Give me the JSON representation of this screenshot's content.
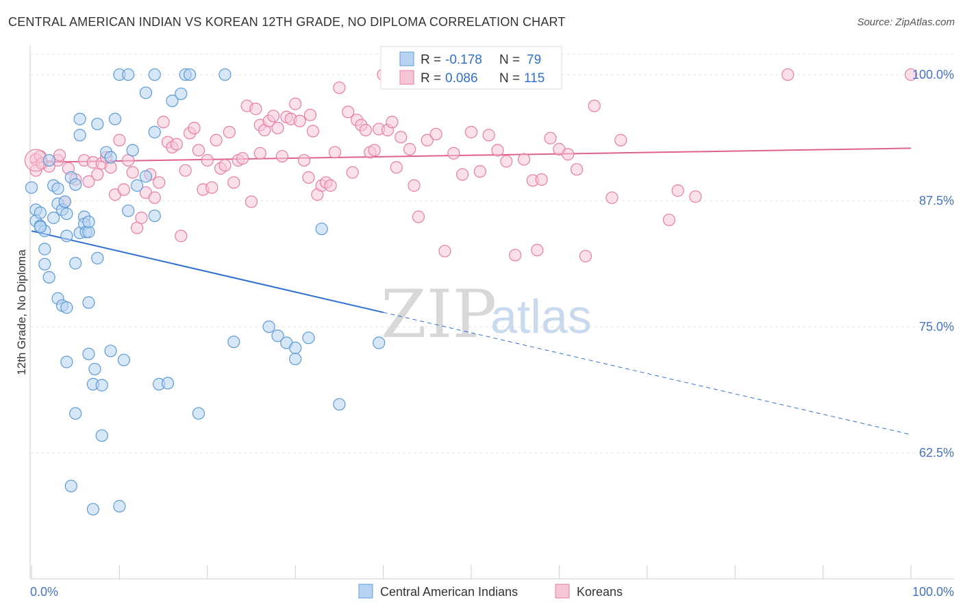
{
  "title": "CENTRAL AMERICAN INDIAN VS KOREAN 12TH GRADE, NO DIPLOMA CORRELATION CHART",
  "source": "Source: ZipAtlas.com",
  "watermark": {
    "zip": "ZIP",
    "atlas": "atlas"
  },
  "colors": {
    "blue": "#5b9bd5",
    "blue_fill": "#b8d3f2",
    "blue_line": "#2e6fd0",
    "pink": "#e87ca6",
    "pink_fill": "#f6c6d7",
    "pink_line": "#e0608e",
    "axis_label": "#4472c4"
  },
  "legend": {
    "rows": [
      {
        "r_label": "R = ",
        "r_value": "-0.178",
        "n_label": "N = ",
        "n_value": "79"
      },
      {
        "r_label": "R = ",
        "r_value": "0.086",
        "n_label": "N = ",
        "n_value": "115"
      }
    ]
  },
  "chart_data": {
    "type": "scatter",
    "title": "CENTRAL AMERICAN INDIAN VS KOREAN 12TH GRADE, NO DIPLOMA CORRELATION CHART",
    "xlabel": "",
    "ylabel": "12th Grade, No Diploma",
    "xlim": [
      0,
      100
    ],
    "ylim": [
      50,
      102
    ],
    "x_tick_labels": [
      "0.0%",
      "100.0%"
    ],
    "y_ticks": [
      62.5,
      75.0,
      87.5,
      100.0
    ],
    "y_tick_labels": [
      "62.5%",
      "75.0%",
      "87.5%",
      "100.0%"
    ],
    "grid": true,
    "legend_position": "top-center",
    "series": [
      {
        "name": "Central American Indians",
        "R": -0.178,
        "N": 79,
        "trend": {
          "x0": 0,
          "y0": 84.5,
          "x_solid_end": 40,
          "x1": 100,
          "y1": 64.3
        },
        "points": [
          [
            0,
            88.8
          ],
          [
            0.5,
            86.6
          ],
          [
            0.5,
            85.5
          ],
          [
            1,
            86.3
          ],
          [
            1,
            85.0
          ],
          [
            1.5,
            84.5
          ],
          [
            1.5,
            82.7
          ],
          [
            1.5,
            81.2
          ],
          [
            2,
            79.9
          ],
          [
            2.5,
            89.0
          ],
          [
            2.5,
            85.8
          ],
          [
            3,
            88.7
          ],
          [
            3,
            87.2
          ],
          [
            3,
            77.8
          ],
          [
            3.5,
            77.1
          ],
          [
            3.5,
            86.6
          ],
          [
            4,
            86.2
          ],
          [
            4,
            84.0
          ],
          [
            4,
            71.5
          ],
          [
            4,
            76.9
          ],
          [
            4.5,
            89.8
          ],
          [
            4.5,
            59.2
          ],
          [
            5,
            81.3
          ],
          [
            5,
            66.4
          ],
          [
            5,
            89.1
          ],
          [
            5.5,
            84.3
          ],
          [
            5.5,
            94.0
          ],
          [
            5.5,
            95.6
          ],
          [
            6,
            85.9
          ],
          [
            6,
            85.2
          ],
          [
            6.2,
            84.4
          ],
          [
            6.5,
            72.3
          ],
          [
            6.5,
            77.4
          ],
          [
            6.5,
            84.4
          ],
          [
            6.5,
            85.4
          ],
          [
            7,
            69.3
          ],
          [
            7.2,
            70.8
          ],
          [
            7.5,
            81.8
          ],
          [
            7.5,
            95.1
          ],
          [
            8,
            64.2
          ],
          [
            8,
            69.2
          ],
          [
            8.5,
            92.3
          ],
          [
            9,
            72.6
          ],
          [
            9.5,
            95.6
          ],
          [
            10,
            100
          ],
          [
            10,
            57.2
          ],
          [
            10.5,
            71.7
          ],
          [
            11,
            100
          ],
          [
            11,
            86.5
          ],
          [
            11.5,
            92.5
          ],
          [
            12,
            89.0
          ],
          [
            13,
            89.9
          ],
          [
            13,
            98.2
          ],
          [
            14,
            100
          ],
          [
            14,
            86.0
          ],
          [
            14,
            94.3
          ],
          [
            14.5,
            69.3
          ],
          [
            15.5,
            69.4
          ],
          [
            16,
            97.4
          ],
          [
            17,
            98.1
          ],
          [
            17.5,
            100
          ],
          [
            18,
            100
          ],
          [
            19,
            66.4
          ],
          [
            22,
            100
          ],
          [
            23,
            73.5
          ],
          [
            27,
            75.0
          ],
          [
            28,
            74.1
          ],
          [
            29,
            73.4
          ],
          [
            30,
            72.9
          ],
          [
            30,
            71.8
          ],
          [
            31.5,
            73.9
          ],
          [
            33,
            84.7
          ],
          [
            35,
            67.3
          ],
          [
            39.5,
            73.4
          ],
          [
            9,
            91.8
          ],
          [
            2,
            91.5
          ],
          [
            7,
            56.9
          ],
          [
            1,
            84.9
          ],
          [
            3.8,
            87.4
          ]
        ]
      },
      {
        "name": "Koreans",
        "R": 0.086,
        "N": 115,
        "trend": {
          "x0": 0,
          "y0": 91.3,
          "x1": 100,
          "y1": 92.7
        },
        "points": [
          [
            0.5,
            90.5
          ],
          [
            0.5,
            91.6
          ],
          [
            1,
            91.9
          ],
          [
            1.2,
            91.2
          ],
          [
            2,
            90.9
          ],
          [
            3,
            91.5
          ],
          [
            3.2,
            92.0
          ],
          [
            3.8,
            87.4
          ],
          [
            4.2,
            90.7
          ],
          [
            5,
            89.6
          ],
          [
            6,
            91.5
          ],
          [
            6.5,
            89.4
          ],
          [
            7,
            91.3
          ],
          [
            7.5,
            90.1
          ],
          [
            8,
            91.2
          ],
          [
            8.5,
            91.8
          ],
          [
            9,
            90.8
          ],
          [
            9.5,
            88.1
          ],
          [
            10,
            93.5
          ],
          [
            10.5,
            88.6
          ],
          [
            11,
            91.5
          ],
          [
            11.5,
            90.3
          ],
          [
            12,
            84.8
          ],
          [
            12.5,
            85.8
          ],
          [
            13,
            88.3
          ],
          [
            13.5,
            90.1
          ],
          [
            14,
            87.8
          ],
          [
            14.5,
            89.3
          ],
          [
            15,
            95.3
          ],
          [
            15.5,
            93.3
          ],
          [
            16,
            92.8
          ],
          [
            16.5,
            93.1
          ],
          [
            17,
            84.0
          ],
          [
            17.5,
            90.5
          ],
          [
            18,
            94.2
          ],
          [
            18.5,
            94.7
          ],
          [
            19,
            92.5
          ],
          [
            19.5,
            88.6
          ],
          [
            20,
            91.5
          ],
          [
            20.5,
            88.8
          ],
          [
            21,
            93.5
          ],
          [
            21.5,
            90.7
          ],
          [
            22,
            91.0
          ],
          [
            22.5,
            94.3
          ],
          [
            23,
            89.3
          ],
          [
            23.5,
            91.5
          ],
          [
            24,
            91.7
          ],
          [
            24.5,
            96.9
          ],
          [
            25,
            87.4
          ],
          [
            25.5,
            96.6
          ],
          [
            26,
            95.0
          ],
          [
            26.5,
            94.5
          ],
          [
            27,
            95.4
          ],
          [
            27.5,
            95.9
          ],
          [
            28,
            94.7
          ],
          [
            28.5,
            91.9
          ],
          [
            29,
            95.8
          ],
          [
            29.5,
            95.6
          ],
          [
            30,
            97.1
          ],
          [
            30.5,
            95.4
          ],
          [
            31,
            91.5
          ],
          [
            31.5,
            89.8
          ],
          [
            32,
            94.4
          ],
          [
            32.5,
            88.1
          ],
          [
            33,
            89.0
          ],
          [
            33.5,
            89.3
          ],
          [
            34,
            89.0
          ],
          [
            34.5,
            92.3
          ],
          [
            35,
            98.7
          ],
          [
            36,
            96.3
          ],
          [
            37,
            95.5
          ],
          [
            37.5,
            95.0
          ],
          [
            38,
            94.5
          ],
          [
            38.5,
            92.3
          ],
          [
            39,
            92.5
          ],
          [
            39.5,
            94.6
          ],
          [
            40,
            100
          ],
          [
            40.5,
            94.5
          ],
          [
            41,
            95.3
          ],
          [
            42,
            93.8
          ],
          [
            43,
            92.6
          ],
          [
            44,
            85.9
          ],
          [
            45,
            93.5
          ],
          [
            46,
            94.1
          ],
          [
            47,
            82.5
          ],
          [
            48,
            92.2
          ],
          [
            49,
            90.1
          ],
          [
            50,
            94.3
          ],
          [
            51,
            90.4
          ],
          [
            52,
            94.0
          ],
          [
            53,
            92.5
          ],
          [
            54,
            91.4
          ],
          [
            55,
            82.1
          ],
          [
            56,
            91.6
          ],
          [
            57,
            89.5
          ],
          [
            57.5,
            82.6
          ],
          [
            58,
            89.6
          ],
          [
            59,
            93.7
          ],
          [
            60,
            92.6
          ],
          [
            61,
            92.1
          ],
          [
            62,
            90.6
          ],
          [
            63,
            82.0
          ],
          [
            66,
            87.8
          ],
          [
            67,
            93.5
          ],
          [
            72.5,
            85.6
          ],
          [
            73.5,
            88.5
          ],
          [
            75.5,
            87.9
          ],
          [
            64,
            96.9
          ],
          [
            86,
            100
          ],
          [
            100,
            100
          ],
          [
            41.5,
            90.8
          ],
          [
            36.5,
            90.3
          ],
          [
            43.5,
            89.0
          ],
          [
            26,
            92.2
          ],
          [
            31.7,
            96.0
          ]
        ]
      }
    ]
  }
}
